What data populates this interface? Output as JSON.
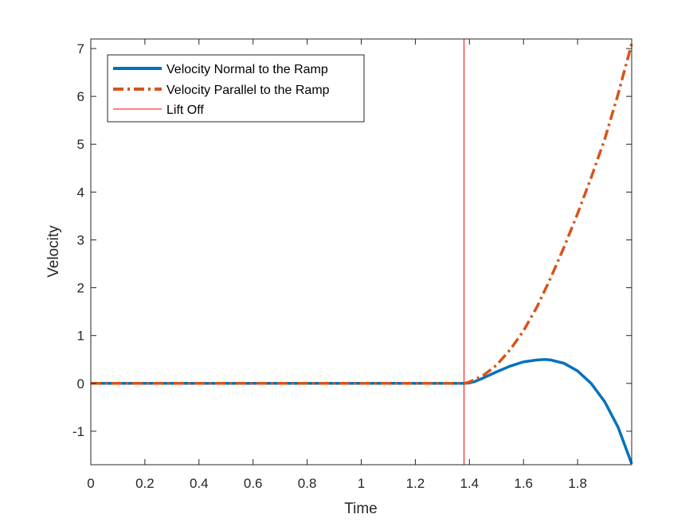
{
  "chart_data": {
    "type": "line",
    "xlabel": "Time",
    "ylabel": "Velocity",
    "xlim": [
      0,
      2
    ],
    "ylim": [
      -1.7,
      7.2
    ],
    "xticks": [
      0,
      0.2,
      0.4,
      0.6,
      0.8,
      1,
      1.2,
      1.4,
      1.6,
      1.8
    ],
    "xtick_labels": [
      "0",
      "0.2",
      "0.4",
      "0.6",
      "0.8",
      "1",
      "1.2",
      "1.4",
      "1.6",
      "1.8"
    ],
    "yticks": [
      -1,
      0,
      1,
      2,
      3,
      4,
      5,
      6,
      7
    ],
    "ytick_labels": [
      "-1",
      "0",
      "1",
      "2",
      "3",
      "4",
      "5",
      "6",
      "7"
    ],
    "grid": false,
    "legend_position": "top-left",
    "series": [
      {
        "name": "Velocity Normal to the Ramp",
        "style": "solid",
        "color": "#0072BD",
        "x": [
          0,
          1.38,
          1.4,
          1.42,
          1.45,
          1.5,
          1.55,
          1.6,
          1.65,
          1.68,
          1.7,
          1.75,
          1.8,
          1.85,
          1.9,
          1.95,
          2.0
        ],
        "y": [
          0,
          0,
          0.01,
          0.04,
          0.11,
          0.24,
          0.36,
          0.45,
          0.49,
          0.5,
          0.49,
          0.42,
          0.26,
          0.0,
          -0.38,
          -0.92,
          -1.68
        ]
      },
      {
        "name": "Velocity Parallel to the Ramp",
        "style": "dashdot",
        "color": "#D95319",
        "x": [
          0,
          1.38,
          1.4,
          1.45,
          1.5,
          1.55,
          1.6,
          1.65,
          1.7,
          1.75,
          1.8,
          1.85,
          1.9,
          1.95,
          2.0
        ],
        "y": [
          0,
          0,
          0.03,
          0.16,
          0.38,
          0.7,
          1.1,
          1.6,
          2.2,
          2.85,
          3.55,
          4.3,
          5.1,
          6.05,
          7.1
        ]
      }
    ],
    "reference_lines": [
      {
        "name": "Lift Off",
        "orientation": "vertical",
        "x": 1.38,
        "color": "#FF0000"
      }
    ]
  }
}
